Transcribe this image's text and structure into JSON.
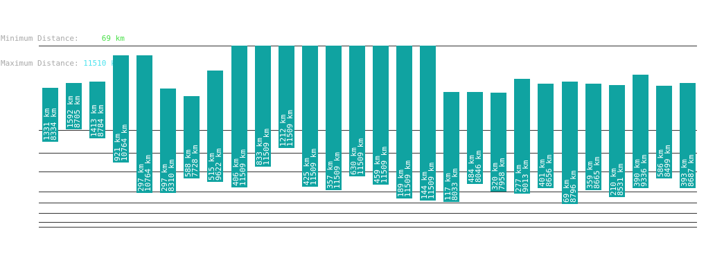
{
  "legend": {
    "min_label": "Minimum Distance:",
    "min_value": "69 km",
    "max_label": "Maximum Distance:",
    "max_value": "11510 km"
  },
  "colors": {
    "bar": "#10a3a1",
    "grid": "#333333",
    "label_text": "#ffffff",
    "legend_label": "#a9a9a9",
    "min_value": "#4be04b",
    "max_value": "#4ee3ee"
  },
  "chart_data": {
    "type": "bar",
    "ylim": [
      0,
      11510
    ],
    "grid": true,
    "bars": [
      {
        "min": 1331,
        "max": 8334,
        "label_min": "1331 km",
        "label_max": "8334 km"
      },
      {
        "min": 1592,
        "max": 8705,
        "label_min": "1592 km",
        "label_max": "8705 km"
      },
      {
        "min": 1413,
        "max": 8784,
        "label_min": "1413 km",
        "label_max": "8784 km"
      },
      {
        "min": 921,
        "max": 10764,
        "label_min": "921 km",
        "label_max": "10764 km"
      },
      {
        "min": 297,
        "max": 10764,
        "label_min": "297 km",
        "label_max": "10764 km"
      },
      {
        "min": 297,
        "max": 8310,
        "label_min": "297 km",
        "label_max": "8310 km"
      },
      {
        "min": 588,
        "max": 7728,
        "label_min": "588 km",
        "label_max": "7728 km"
      },
      {
        "min": 515,
        "max": 9622,
        "label_min": "515 km",
        "label_max": "9622 km"
      },
      {
        "min": 406,
        "max": 11509,
        "label_min": "406 km",
        "label_max": "11509 km"
      },
      {
        "min": 833,
        "max": 11509,
        "label_min": "833 km",
        "label_max": "11509 km"
      },
      {
        "min": 1212,
        "max": 11509,
        "label_min": "1212 km",
        "label_max": "11509 km"
      },
      {
        "min": 425,
        "max": 11509,
        "label_min": "425 km",
        "label_max": "11509 km"
      },
      {
        "min": 357,
        "max": 11509,
        "label_min": "357 km",
        "label_max": "11509 km"
      },
      {
        "min": 630,
        "max": 11509,
        "label_min": "630 km",
        "label_max": "11509 km"
      },
      {
        "min": 459,
        "max": 11509,
        "label_min": "459 km",
        "label_max": "11509 km"
      },
      {
        "min": 189,
        "max": 11509,
        "label_min": "189 km",
        "label_max": "11509 km"
      },
      {
        "min": 144,
        "max": 11509,
        "label_min": "144 km",
        "label_max": "11509 km"
      },
      {
        "min": 117,
        "max": 8033,
        "label_min": "117 km",
        "label_max": "8033 km"
      },
      {
        "min": 484,
        "max": 8046,
        "label_min": "484 km",
        "label_max": "8046 km"
      },
      {
        "min": 320,
        "max": 7958,
        "label_min": "320 km",
        "label_max": "7958 km"
      },
      {
        "min": 277,
        "max": 9013,
        "label_min": "277 km",
        "label_max": "9013 km"
      },
      {
        "min": 401,
        "max": 8656,
        "label_min": "401 km",
        "label_max": "8656 km"
      },
      {
        "min": 69,
        "max": 8796,
        "label_min": "69 km",
        "label_max": "8796 km"
      },
      {
        "min": 359,
        "max": 8665,
        "label_min": "359 km",
        "label_max": "8665 km"
      },
      {
        "min": 210,
        "max": 8531,
        "label_min": "210 km",
        "label_max": "8531 km"
      },
      {
        "min": 390,
        "max": 9336,
        "label_min": "390 km",
        "label_max": "9336 km"
      },
      {
        "min": 586,
        "max": 8499,
        "label_min": "586 km",
        "label_max": "8499 km"
      },
      {
        "min": 393,
        "max": 8687,
        "label_min": "393 km",
        "label_max": "8687 km"
      }
    ]
  }
}
